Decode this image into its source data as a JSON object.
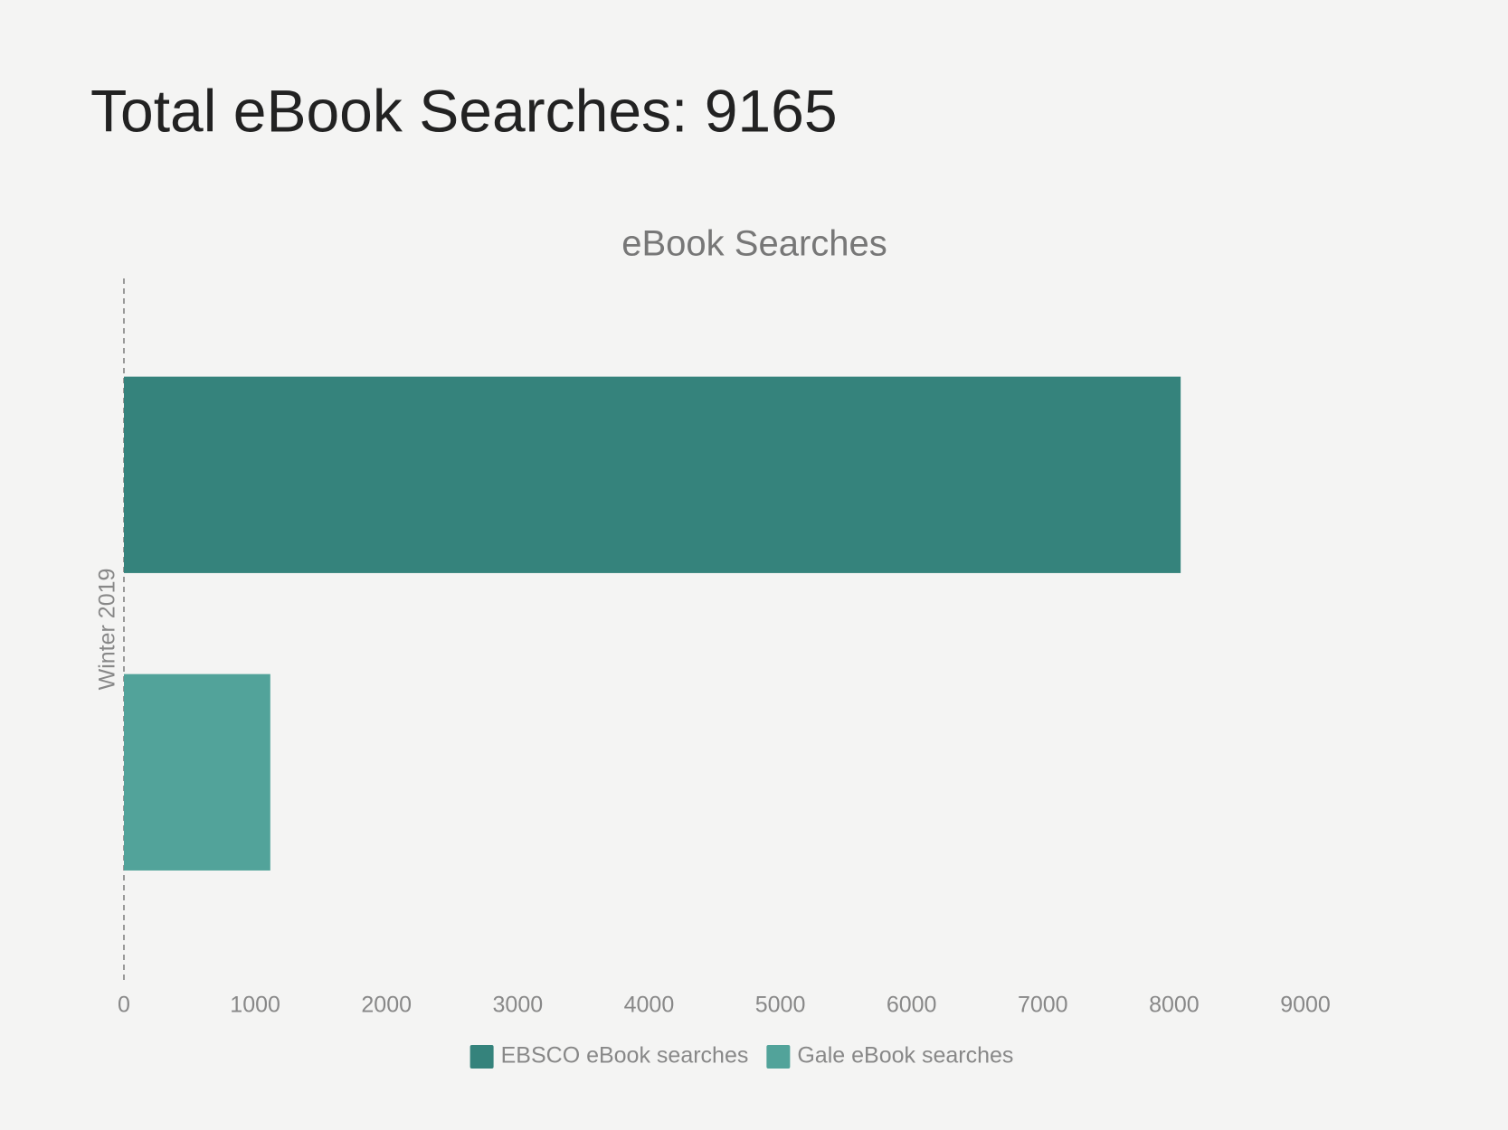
{
  "page_title": "Total eBook Searches: 9165",
  "chart_data": {
    "type": "hbar",
    "title": "eBook Searches",
    "categories": [
      "Winter 2019"
    ],
    "series": [
      {
        "name": "EBSCO eBook searches",
        "color": "#35837c",
        "values": [
          8050
        ]
      },
      {
        "name": "Gale eBook searches",
        "color": "#52a39a",
        "values": [
          1115
        ]
      }
    ],
    "xlim": [
      0,
      9000
    ],
    "xticks": [
      0,
      1000,
      2000,
      3000,
      4000,
      5000,
      6000,
      7000,
      8000,
      9000
    ],
    "grid": false,
    "legend": "bottom"
  }
}
